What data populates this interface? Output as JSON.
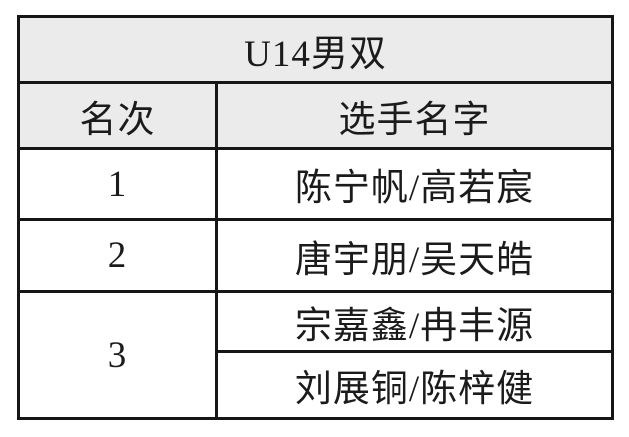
{
  "table": {
    "title": "U14男双",
    "columns": [
      {
        "label": "名次"
      },
      {
        "label": "选手名字"
      }
    ],
    "rows": [
      {
        "rank": "1",
        "players": [
          "陈宁帆/高若宸"
        ]
      },
      {
        "rank": "2",
        "players": [
          "唐宇朋/吴天皓"
        ]
      },
      {
        "rank": "3",
        "players": [
          "宗嘉鑫/冉丰源",
          "刘展铜/陈梓健"
        ]
      }
    ]
  },
  "colors": {
    "header_bg": "#ebebeb",
    "border": "#161616",
    "text": "#1b1b1b",
    "page_bg": "#ffffff"
  }
}
